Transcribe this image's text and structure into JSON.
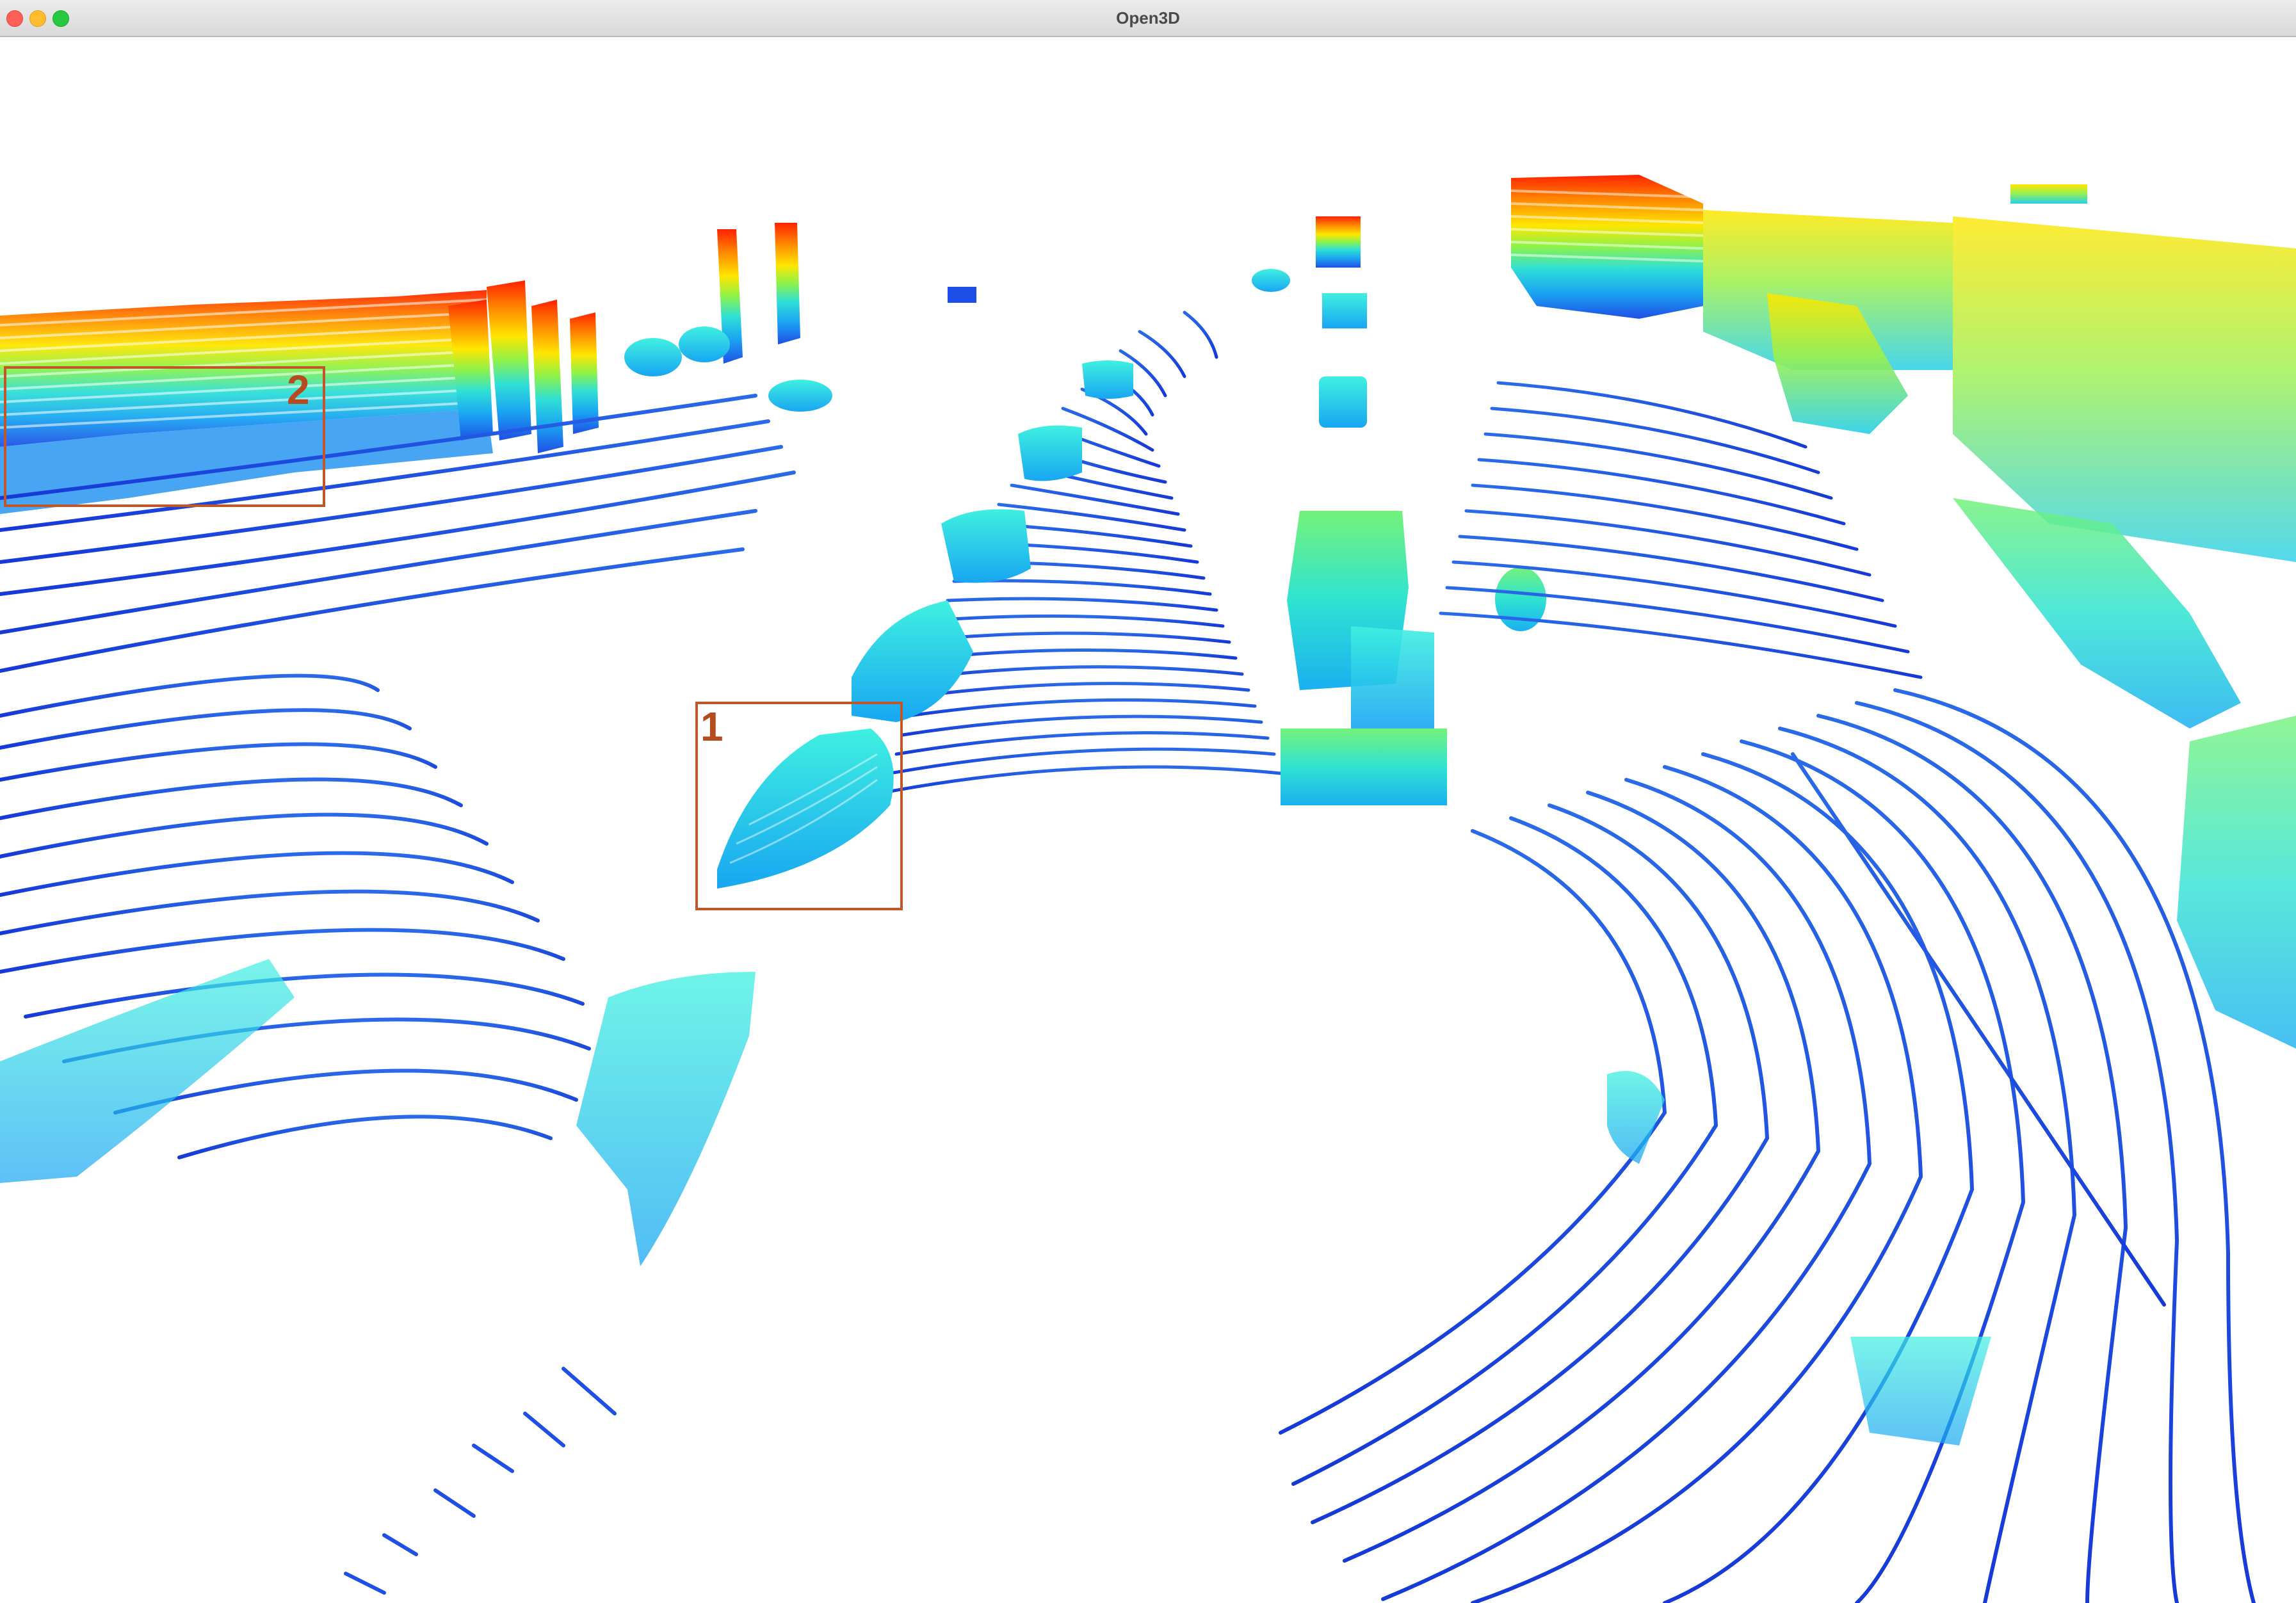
{
  "window": {
    "title": "Open3D",
    "controls": [
      "close",
      "minimize",
      "zoom"
    ]
  },
  "viewport": {
    "content": "lidar-point-cloud",
    "colormap": "jet",
    "background": "#ffffff"
  },
  "annotations": [
    {
      "label": "1",
      "color": "#c0572b"
    },
    {
      "label": "2",
      "color": "#c0572b"
    }
  ]
}
